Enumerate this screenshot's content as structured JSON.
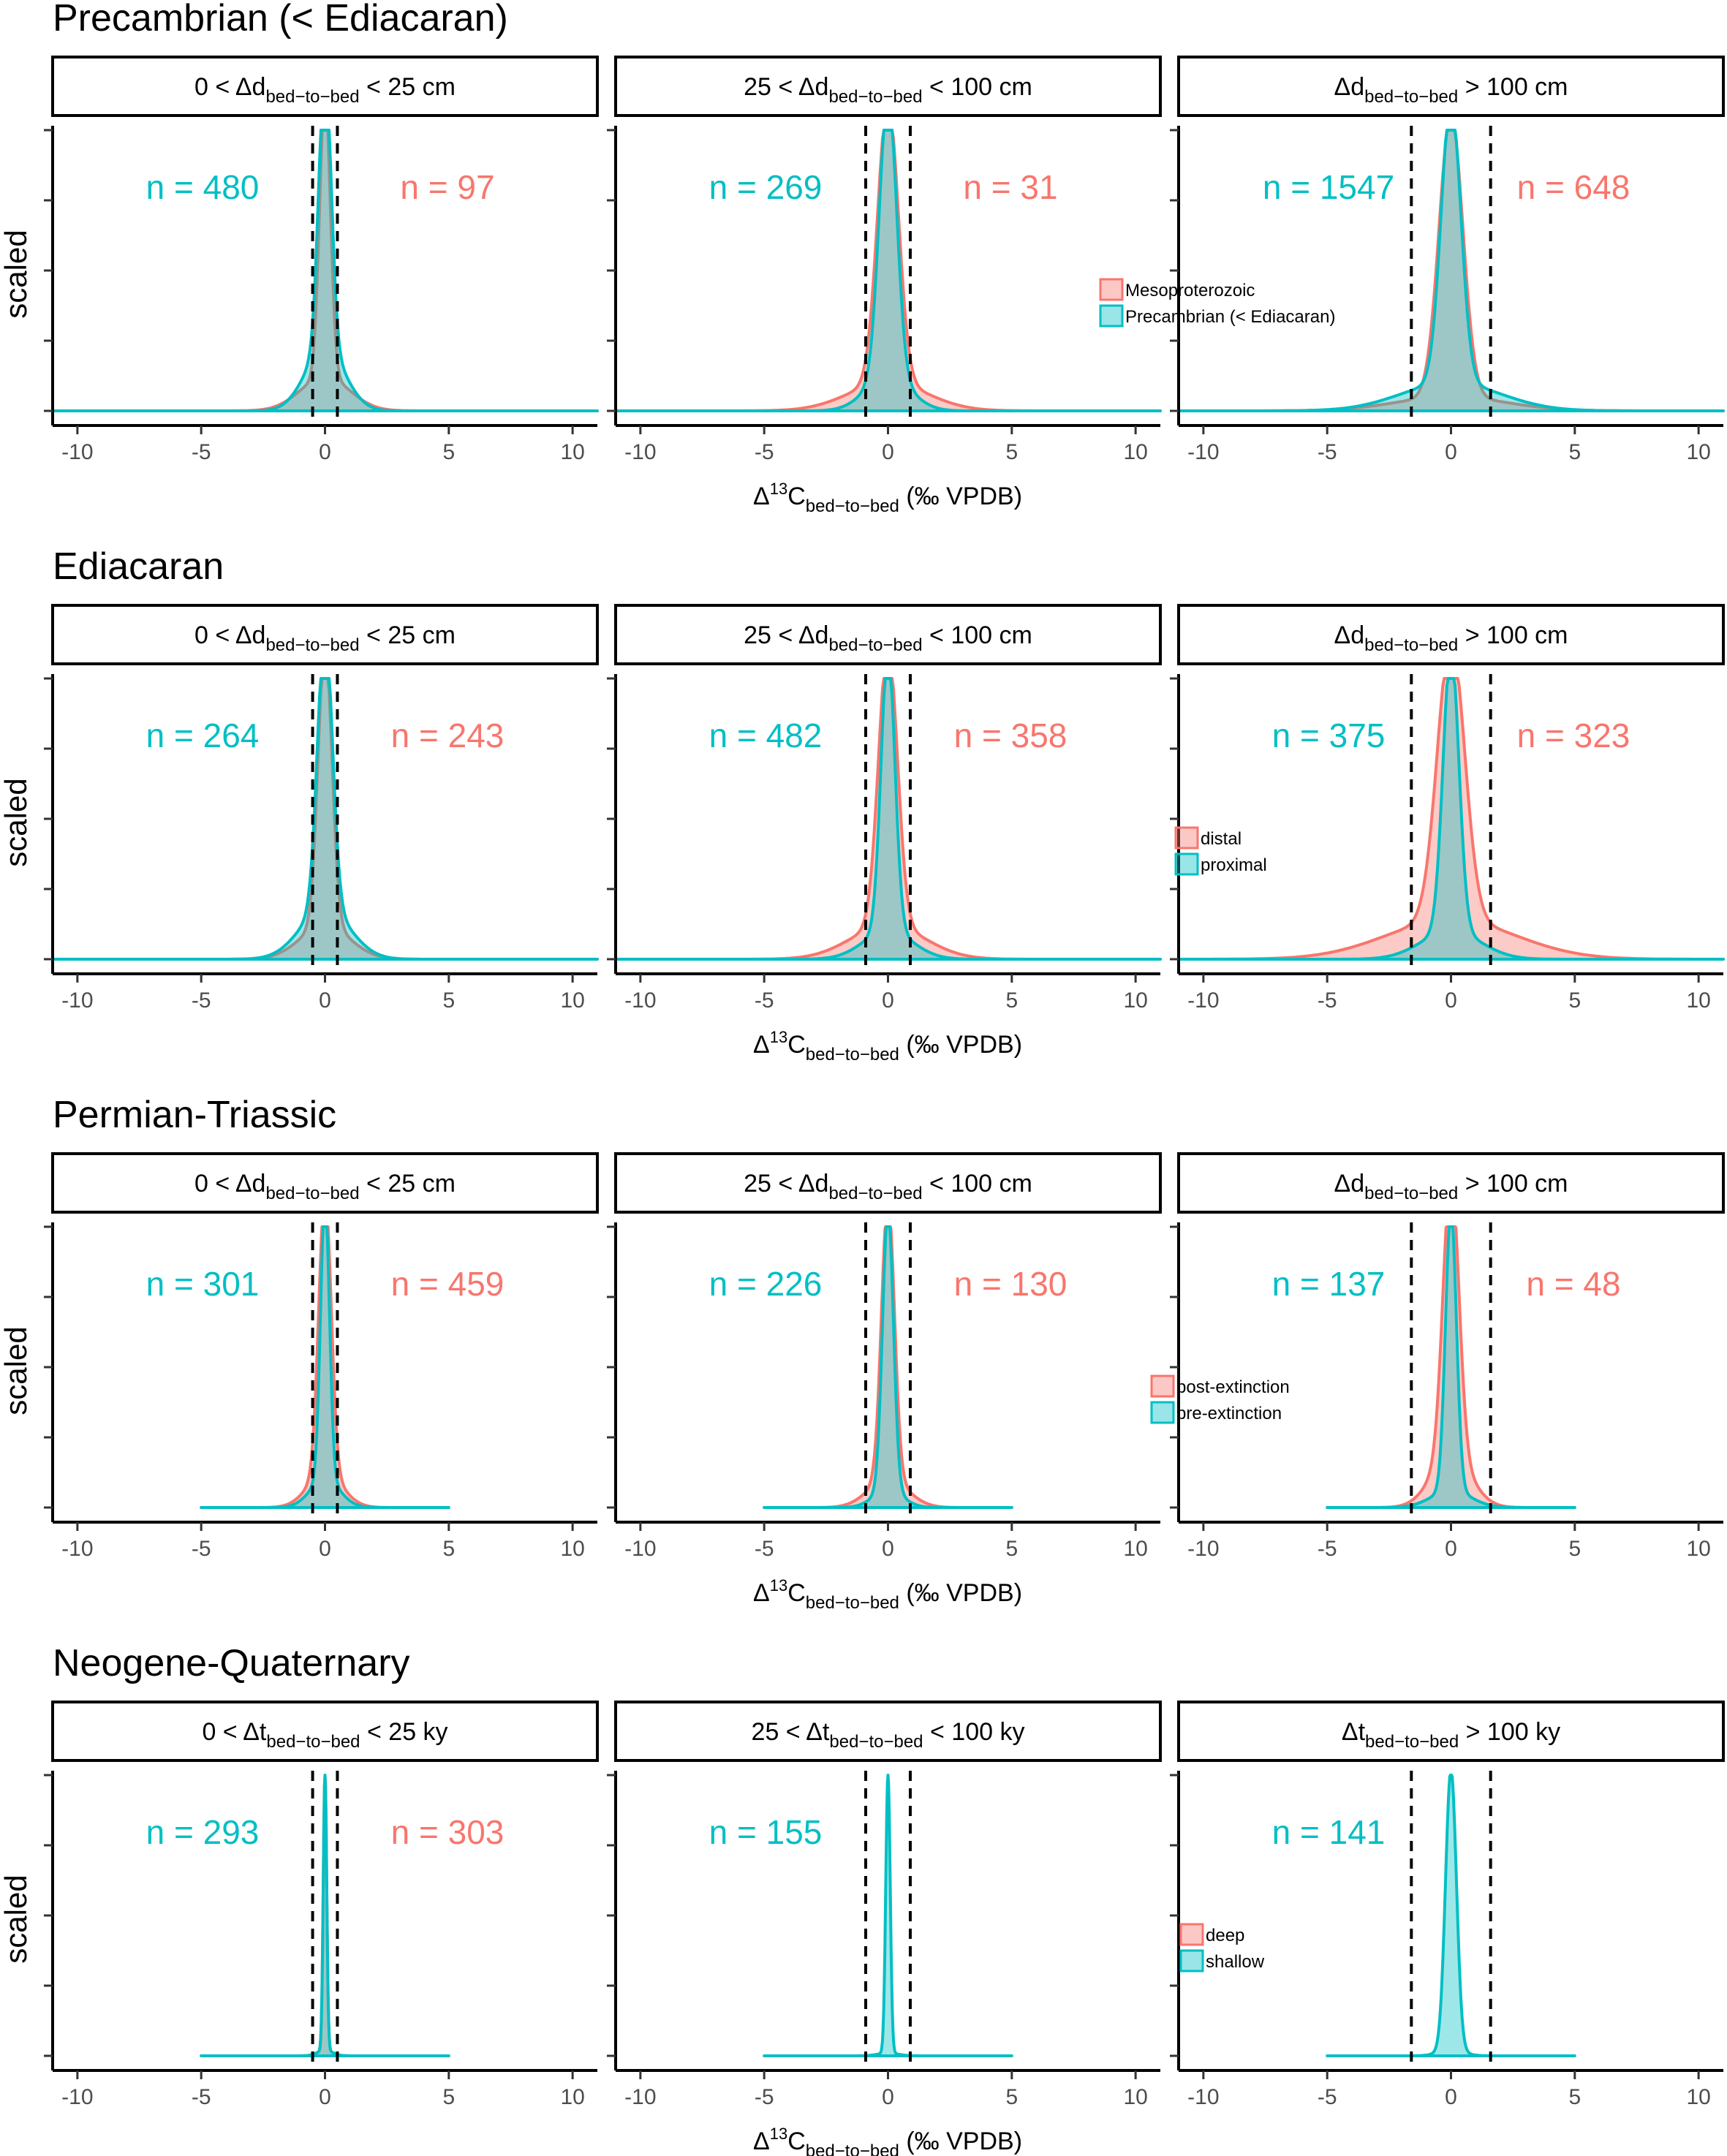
{
  "chart_data": {
    "type": "area",
    "description_of_y": "scaled density",
    "colors": {
      "a": "#F8766D",
      "b": "#00BFC4"
    },
    "x_axis": {
      "range": [
        -11,
        11
      ],
      "ticks": [
        -10,
        -5,
        0,
        5,
        10
      ],
      "tick_labels": [
        "-10",
        "-5",
        "0",
        "5",
        "10"
      ],
      "label_prefix": "Δ",
      "label_sup": "13",
      "label_main": "C",
      "label_sub": "bed−to−bed",
      "label_suffix": "(‰ VPDB)"
    },
    "y_axis": {
      "label": "scaled",
      "range": [
        0,
        1
      ]
    },
    "facet_headers": [
      {
        "pre": "0  <  Δd",
        "sub": "bed−to−bed",
        "post": "  <  25  cm"
      },
      {
        "pre": "25  <  Δd",
        "sub": "bed−to−bed",
        "post": "  <  100  cm"
      },
      {
        "pre": "Δd",
        "sub": "bed−to−bed",
        "post": "  >  100  cm"
      }
    ],
    "facet_headers_time": [
      {
        "pre": "0  <  Δt",
        "sub": "bed−to−bed",
        "post": "  <  25  ky"
      },
      {
        "pre": "25  <  Δt",
        "sub": "bed−to−bed",
        "post": "  <  100  ky"
      },
      {
        "pre": "Δt",
        "sub": "bed−to−bed",
        "post": "  >  100  ky"
      }
    ],
    "rows": [
      {
        "title": "Precambrian (< Ediacaran)",
        "legend": [
          "Mesoproterozoic",
          "Precambrian (< Ediacaran)"
        ],
        "thresholds": [
          0.5,
          0.9,
          1.6
        ],
        "panels": [
          {
            "n_b": "n = 480",
            "n_a": "n = 97",
            "support": [
              -11,
              11
            ],
            "b": {
              "sigma": 0.25,
              "tail": 0.22,
              "tail_sigma": 0.8
            },
            "a": {
              "sigma": 0.22,
              "tail": 0.12,
              "tail_sigma": 1.0
            }
          },
          {
            "n_b": "n = 269",
            "n_a": "n = 31",
            "support": [
              -11,
              11
            ],
            "b": {
              "sigma": 0.35,
              "tail": 0.12,
              "tail_sigma": 0.9
            },
            "a": {
              "sigma": 0.42,
              "tail": 0.1,
              "tail_sigma": 1.6
            }
          },
          {
            "n_b": "n = 1547",
            "n_a": "n = 648",
            "support": [
              -11,
              11
            ],
            "b": {
              "sigma": 0.4,
              "tail": 0.1,
              "tail_sigma": 2.0
            },
            "a": {
              "sigma": 0.48,
              "tail": 0.05,
              "tail_sigma": 2.2
            }
          }
        ]
      },
      {
        "title": "Ediacaran",
        "legend": [
          "distal",
          "proximal"
        ],
        "thresholds": [
          0.5,
          0.9,
          1.6
        ],
        "panels": [
          {
            "n_b": "n = 264",
            "n_a": "n = 243",
            "support": [
              -11,
              11
            ],
            "b": {
              "sigma": 0.3,
              "tail": 0.18,
              "tail_sigma": 1.0
            },
            "a": {
              "sigma": 0.28,
              "tail": 0.12,
              "tail_sigma": 1.0
            }
          },
          {
            "n_b": "n = 482",
            "n_a": "n = 358",
            "support": [
              -11,
              11
            ],
            "b": {
              "sigma": 0.28,
              "tail": 0.1,
              "tail_sigma": 1.0
            },
            "a": {
              "sigma": 0.38,
              "tail": 0.12,
              "tail_sigma": 1.5
            }
          },
          {
            "n_b": "n = 375",
            "n_a": "n = 323",
            "support": [
              -11,
              11
            ],
            "b": {
              "sigma": 0.32,
              "tail": 0.1,
              "tail_sigma": 1.2
            },
            "a": {
              "sigma": 0.55,
              "tail": 0.14,
              "tail_sigma": 2.6
            }
          }
        ]
      },
      {
        "title": "Permian-Triassic",
        "legend": [
          "post-extinction",
          "pre-extinction"
        ],
        "thresholds": [
          0.5,
          0.9,
          1.6
        ],
        "panels": [
          {
            "n_b": "n = 301",
            "n_a": "n = 459",
            "support": [
              -5,
              5
            ],
            "b": {
              "sigma": 0.18,
              "tail": 0.1,
              "tail_sigma": 0.6
            },
            "a": {
              "sigma": 0.25,
              "tail": 0.12,
              "tail_sigma": 0.7
            }
          },
          {
            "n_b": "n = 226",
            "n_a": "n = 130",
            "support": [
              -5,
              5
            ],
            "b": {
              "sigma": 0.22,
              "tail": 0.06,
              "tail_sigma": 0.6
            },
            "a": {
              "sigma": 0.26,
              "tail": 0.1,
              "tail_sigma": 0.8
            }
          },
          {
            "n_b": "n = 137",
            "n_a": "n = 48",
            "support": [
              -5,
              5
            ],
            "b": {
              "sigma": 0.22,
              "tail": 0.06,
              "tail_sigma": 0.8
            },
            "a": {
              "sigma": 0.32,
              "tail": 0.18,
              "tail_sigma": 0.8
            }
          }
        ]
      },
      {
        "title": "Neogene-Quaternary",
        "legend": [
          "deep",
          "shallow"
        ],
        "thresholds": [
          0.5,
          0.9,
          1.6
        ],
        "time_headers": true,
        "panels": [
          {
            "n_b": "n = 293",
            "n_a": "n = 303",
            "support": [
              -5,
              5
            ],
            "b": {
              "sigma": 0.07,
              "tail": 0.02,
              "tail_sigma": 0.3
            },
            "a": {
              "sigma": 0.07,
              "tail": 0.02,
              "tail_sigma": 0.3
            }
          },
          {
            "n_b": "n = 155",
            "n_a": "",
            "support": [
              -5,
              5
            ],
            "b": {
              "sigma": 0.09,
              "tail": 0.01,
              "tail_sigma": 0.4
            },
            "a": null
          },
          {
            "n_b": "n = 141",
            "n_a": "",
            "support": [
              -5,
              5
            ],
            "b": {
              "sigma": 0.22,
              "tail": 0.02,
              "tail_sigma": 0.5
            },
            "a": null
          }
        ]
      }
    ]
  }
}
